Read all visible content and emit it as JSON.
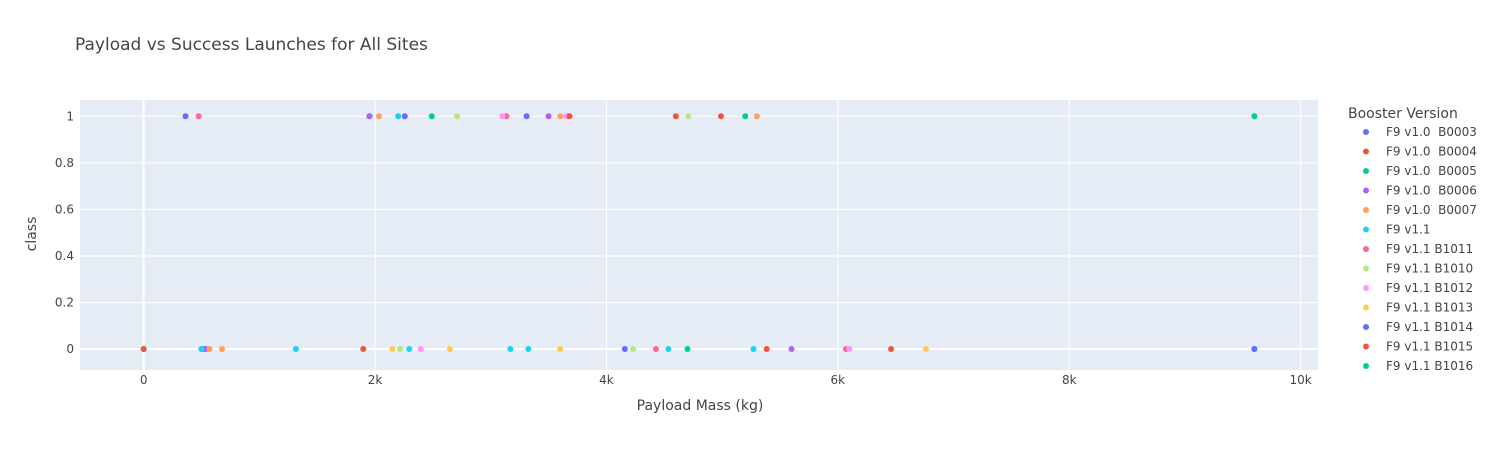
{
  "chart_data": {
    "type": "scatter",
    "title": "Payload vs Success Launches for All Sites",
    "xlabel": "Payload Mass (kg)",
    "ylabel": "class",
    "xlim": [
      -550,
      10150
    ],
    "ylim": [
      -0.09,
      1.07
    ],
    "x_ticks": [
      0,
      2000,
      4000,
      6000,
      8000,
      10000
    ],
    "x_tick_labels": [
      "0",
      "2k",
      "4k",
      "6k",
      "8k",
      "10k"
    ],
    "y_ticks": [
      0,
      0.2,
      0.4,
      0.6,
      0.8,
      1
    ],
    "y_tick_labels": [
      "0",
      "0.2",
      "0.4",
      "0.6",
      "0.8",
      "1"
    ],
    "grid": true,
    "legend": {
      "title": "Booster Version",
      "placement": "right"
    },
    "series": [
      {
        "name": "F9 v1.0  B0003",
        "color": "#636efa",
        "points": [
          [
            0,
            0
          ],
          [
            525,
            0
          ],
          [
            1952,
            1
          ],
          [
            3310,
            1
          ],
          [
            4159,
            0
          ],
          [
            9600,
            0
          ]
        ]
      },
      {
        "name": "F9 v1.0  B0004",
        "color": "#EF553B",
        "points": [
          [
            0,
            0
          ],
          [
            1898,
            0
          ],
          [
            4600,
            1
          ],
          [
            4990,
            1
          ],
          [
            5385,
            0
          ],
          [
            6460,
            0
          ]
        ]
      },
      {
        "name": "F9 v1.0  B0005",
        "color": "#00cc96",
        "points": [
          [
            500,
            0
          ],
          [
            2490,
            1
          ],
          [
            4700,
            0
          ],
          [
            5200,
            1
          ]
        ]
      },
      {
        "name": "F9 v1.0  B0006",
        "color": "#ab63fa",
        "points": [
          [
            540,
            0
          ],
          [
            1952,
            1
          ],
          [
            3500,
            1
          ],
          [
            5600,
            0
          ]
        ]
      },
      {
        "name": "F9 v1.0  B0007",
        "color": "#FFA15A",
        "points": [
          [
            570,
            0
          ],
          [
            677,
            0
          ],
          [
            2034,
            1
          ],
          [
            3600,
            1
          ],
          [
            5300,
            1
          ]
        ]
      },
      {
        "name": "F9 v1.1",
        "color": "#19d3f3",
        "points": [
          [
            500,
            0
          ],
          [
            1316,
            0
          ],
          [
            2200,
            1
          ],
          [
            2296,
            0
          ],
          [
            3170,
            0
          ],
          [
            3325,
            0
          ],
          [
            4535,
            0
          ],
          [
            5271,
            0
          ]
        ]
      },
      {
        "name": "F9 v1.1 B1011",
        "color": "#FF6692",
        "points": [
          [
            475,
            1
          ],
          [
            3136,
            1
          ],
          [
            3669,
            1
          ],
          [
            4428,
            0
          ],
          [
            6070,
            0
          ]
        ]
      },
      {
        "name": "F9 v1.1 B1010",
        "color": "#B6E880",
        "points": [
          [
            2216,
            0
          ],
          [
            2708,
            1
          ],
          [
            4230,
            0
          ],
          [
            4707,
            1
          ],
          [
            9600,
            1
          ]
        ]
      },
      {
        "name": "F9 v1.1 B1012",
        "color": "#FF97FF",
        "points": [
          [
            2395,
            0
          ],
          [
            3100,
            1
          ],
          [
            3650,
            1
          ],
          [
            6100,
            0
          ]
        ]
      },
      {
        "name": "F9 v1.1 B1013",
        "color": "#FECB52",
        "points": [
          [
            2150,
            0
          ],
          [
            2647,
            0
          ],
          [
            3600,
            0
          ],
          [
            6761,
            0
          ]
        ]
      },
      {
        "name": "F9 v1.1 B1014",
        "color": "#636efa",
        "points": [
          [
            362,
            1
          ],
          [
            2257,
            1
          ],
          [
            9600,
            0
          ]
        ]
      },
      {
        "name": "F9 v1.1 B1015",
        "color": "#EF553B",
        "points": [
          [
            3681,
            1
          ]
        ]
      },
      {
        "name": "F9 v1.1 B1016",
        "color": "#00cc96",
        "points": [
          [
            9600,
            1
          ]
        ]
      }
    ]
  }
}
